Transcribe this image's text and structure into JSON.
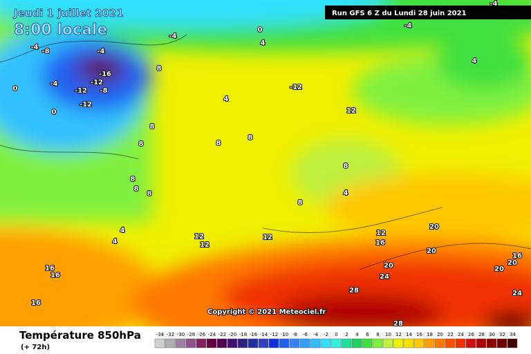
{
  "header": {
    "date": "Jeudi 1 juillet 2021",
    "time": "8:00 locale",
    "run": "Run GFS 6 Z du Lundi 28 juin 2021"
  },
  "copyright": "Copyright © 2021 Meteociel.fr",
  "footer": {
    "title": "Température 850hPa",
    "lead": "(+ 72h)"
  },
  "legend": {
    "values": [
      -34,
      -32,
      -30,
      -28,
      -26,
      -24,
      -22,
      -20,
      -18,
      -16,
      -14,
      -12,
      -10,
      -8,
      -6,
      -4,
      -2,
      0,
      2,
      4,
      6,
      8,
      10,
      12,
      14,
      16,
      18,
      20,
      22,
      24,
      26,
      28,
      30,
      32,
      34
    ],
    "colors": [
      "#d0d0d0",
      "#b0b0b0",
      "#a080a0",
      "#905090",
      "#802060",
      "#600040",
      "#500050",
      "#401070",
      "#302080",
      "#2030a0",
      "#3040c0",
      "#1030e0",
      "#2060f0",
      "#3080ff",
      "#30a0ff",
      "#30c0ff",
      "#30e0ff",
      "#30f0e0",
      "#20e0a0",
      "#20d060",
      "#40e040",
      "#80f040",
      "#c0f040",
      "#f0f000",
      "#f8e000",
      "#ffc800",
      "#ffa000",
      "#ff7800",
      "#ff5000",
      "#f03000",
      "#d01010",
      "#b00000",
      "#900000",
      "#700000",
      "#400000"
    ]
  },
  "contour_labels": [
    "-4",
    "0",
    "4",
    "-4",
    "-4",
    "-4",
    "-8",
    "-4",
    "-16",
    "-12",
    "8",
    "-4",
    "-12",
    "-8",
    "-12",
    "0",
    "0",
    "-12",
    "12",
    "4",
    "4",
    "8",
    "8",
    "8",
    "8",
    "8",
    "4",
    "8",
    "8",
    "8",
    "8",
    "4",
    "4",
    "12",
    "12",
    "12",
    "12",
    "16",
    "20",
    "20",
    "20",
    "24",
    "16",
    "20",
    "20",
    "24",
    "28",
    "28",
    "16",
    "16",
    "16"
  ]
}
